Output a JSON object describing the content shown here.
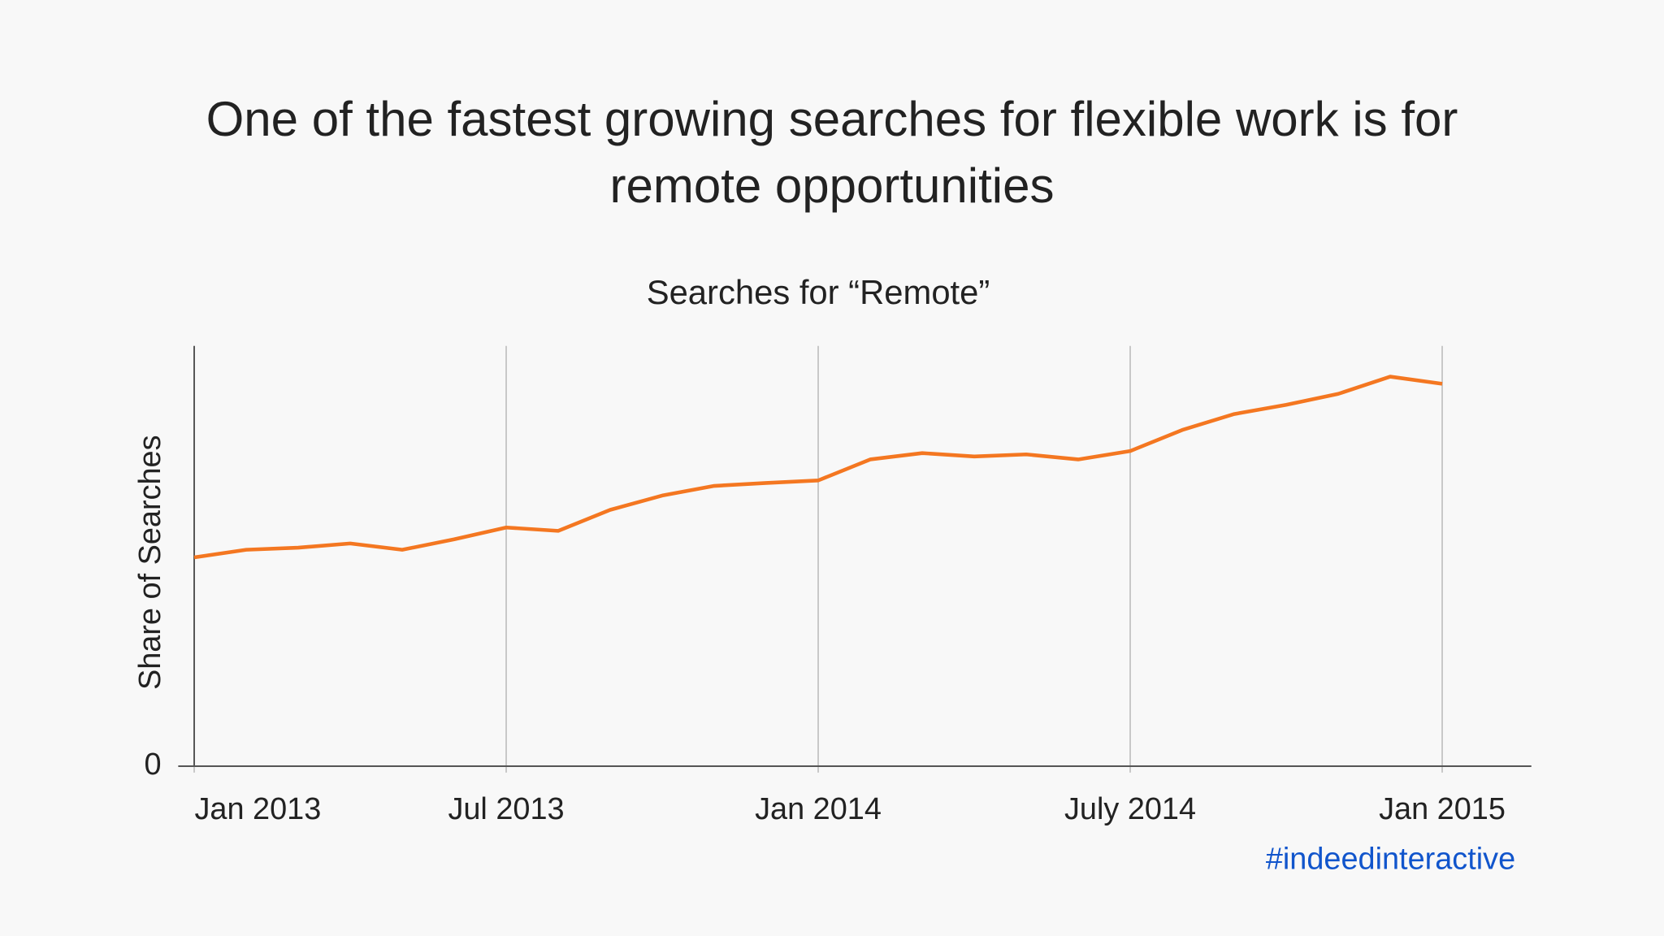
{
  "chart_data": {
    "type": "line",
    "title": "One of the fastest growing searches for flexible work is for remote opportunities",
    "subtitle": "Searches for “Remote”",
    "ylabel": "Share of Searches",
    "footer": "#indeedinteractive",
    "x": [
      "2013-01",
      "2013-02",
      "2013-03",
      "2013-04",
      "2013-05",
      "2013-06",
      "2013-07",
      "2013-08",
      "2013-09",
      "2013-10",
      "2013-11",
      "2013-12",
      "2014-01",
      "2014-02",
      "2014-03",
      "2014-04",
      "2014-05",
      "2014-06",
      "2014-07",
      "2014-08",
      "2014-09",
      "2014-10",
      "2014-11",
      "2014-12",
      "2015-01"
    ],
    "series": [
      {
        "name": "Remote",
        "color": "#f47721",
        "values": [
          49.7,
          51.5,
          52,
          53,
          51.5,
          54,
          56.8,
          56,
          61,
          64.4,
          66.7,
          67.4,
          68,
          73,
          74.5,
          73.7,
          74.2,
          73,
          75,
          80,
          83.8,
          86,
          88.6,
          92.7,
          91
        ]
      }
    ],
    "xticks": [
      {
        "value": "2013-01",
        "label": "Jan 2013"
      },
      {
        "value": "2013-07",
        "label": "Jul 2013"
      },
      {
        "value": "2014-01",
        "label": "Jan 2014"
      },
      {
        "value": "2014-07",
        "label": "July 2014"
      },
      {
        "value": "2015-01",
        "label": "Jan 2015"
      }
    ],
    "ylim": [
      0,
      100
    ],
    "yticks": [
      0
    ],
    "grid": true
  }
}
